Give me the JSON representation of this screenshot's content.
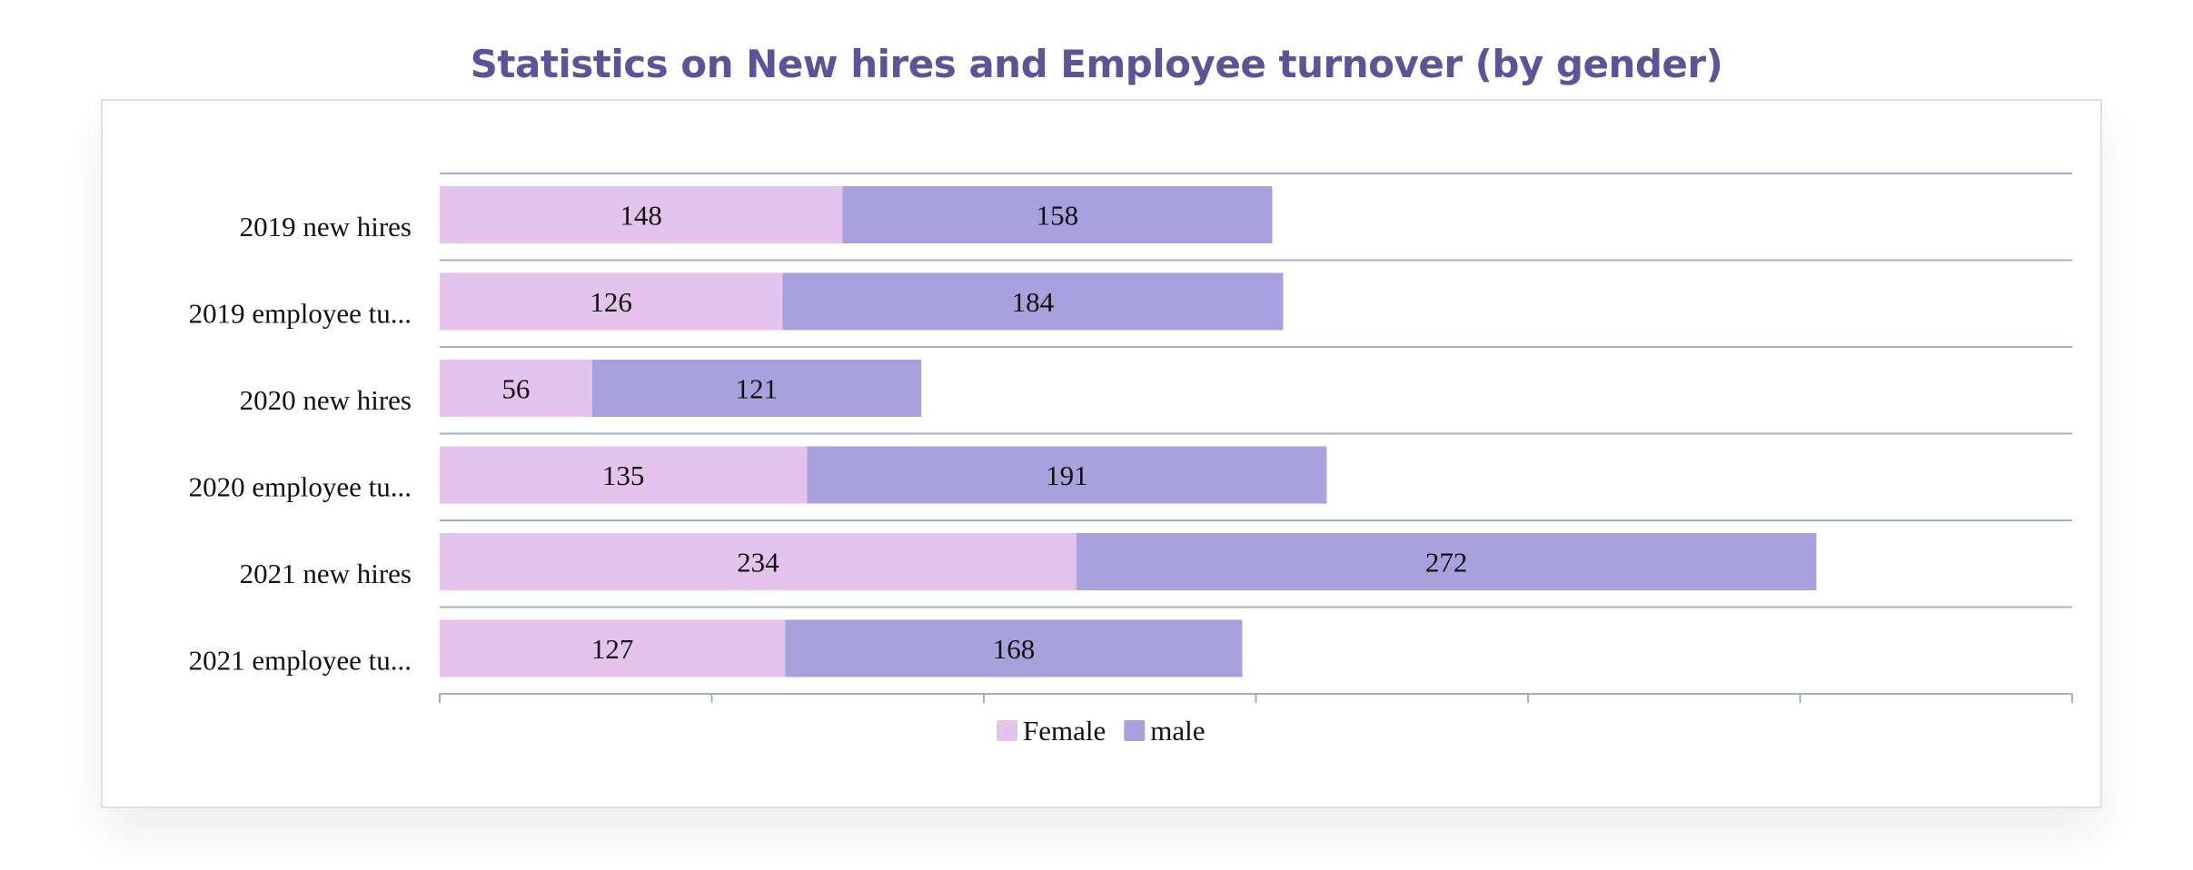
{
  "chart_data": {
    "type": "bar",
    "orientation": "horizontal",
    "stacked": true,
    "title": "Statistics on New hires and Employee turnover (by gender)",
    "categories": [
      "2019 new hires",
      "2019 employee tu...",
      "2020 new hires",
      "2020 employee tu...",
      "2021 new hires",
      "2021 employee tu..."
    ],
    "series": [
      {
        "name": "Female",
        "color": "#e4c3ec",
        "values": [
          148,
          126,
          56,
          135,
          234,
          127
        ]
      },
      {
        "name": "male",
        "color": "#a8a1dd",
        "values": [
          158,
          184,
          121,
          191,
          272,
          168
        ]
      }
    ],
    "xlim": [
      0,
      600
    ],
    "grid": "horizontal separators",
    "legend": "bottom-center",
    "colors": {
      "title": "#5f5397",
      "grid": "#a3b0bc",
      "text": "#111111"
    }
  }
}
